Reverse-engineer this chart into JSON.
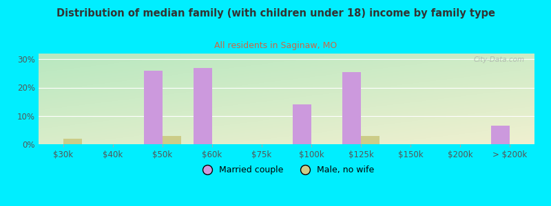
{
  "title": "Distribution of median family (with children under 18) income by family type",
  "subtitle": "All residents in Saginaw, MO",
  "title_color": "#333333",
  "subtitle_color": "#cc6644",
  "background_outer": "#00eeff",
  "background_inner_top_left": "#b8e8c0",
  "background_inner_bottom_right": "#f0f0d0",
  "categories": [
    "$30k",
    "$40k",
    "$50k",
    "$60k",
    "$75k",
    "$100k",
    "$125k",
    "$150k",
    "$200k",
    "> $200k"
  ],
  "married_couple": [
    0,
    0,
    26.0,
    27.0,
    0,
    14.0,
    25.5,
    0,
    0,
    6.5
  ],
  "male_no_wife": [
    2.0,
    0,
    3.0,
    0,
    0,
    0,
    3.0,
    0,
    0,
    0
  ],
  "bar_color_married": "#cc99dd",
  "bar_color_male": "#cccc88",
  "bar_width": 0.38,
  "ylim": [
    0,
    32
  ],
  "yticks": [
    0,
    10,
    20,
    30
  ],
  "watermark": "City-Data.com",
  "legend_married": "Married couple",
  "legend_male": "Male, no wife",
  "title_fontsize": 10.5,
  "subtitle_fontsize": 9,
  "tick_fontsize": 8.5
}
